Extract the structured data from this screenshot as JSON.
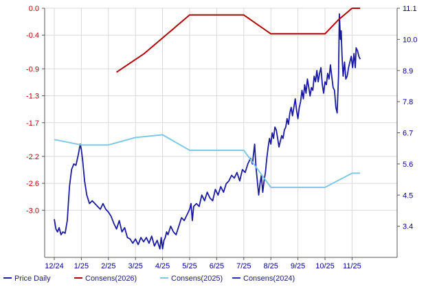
{
  "chart_data": {
    "type": "line",
    "x_ticks": [
      "12/24",
      "1/25",
      "2/25",
      "3/25",
      "4/25",
      "5/25",
      "6/25",
      "7/25",
      "8/25",
      "9/25",
      "10/25",
      "11/25"
    ],
    "y_left": {
      "ticks": [
        0.0,
        -0.4,
        -0.9,
        -1.3,
        -1.7,
        -2.2,
        -2.6,
        -3.0
      ],
      "labels": [
        "0.0",
        "-0.4",
        "-0.9",
        "-1.3",
        "-1.7",
        "-2.2",
        "-2.6",
        "-3.0"
      ],
      "range": [
        -3.7,
        0.0
      ],
      "color": "#b30000"
    },
    "y_right": {
      "ticks": [
        11.1,
        10.0,
        8.9,
        7.8,
        6.7,
        5.6,
        4.5,
        3.4
      ],
      "labels": [
        "11.1",
        "10.0",
        "8.9",
        "7.8",
        "6.7",
        "5.6",
        "4.5",
        "3.4"
      ],
      "range": [
        2.3,
        11.1
      ],
      "color": "#000080"
    },
    "grid": true,
    "legend_position": "bottom",
    "series": [
      {
        "name": "Price Daily",
        "axis": "right",
        "color": "#1a1aa0",
        "points": [
          [
            0.0,
            3.65
          ],
          [
            0.06,
            3.3
          ],
          [
            0.12,
            3.2
          ],
          [
            0.18,
            3.35
          ],
          [
            0.25,
            3.1
          ],
          [
            0.32,
            3.2
          ],
          [
            0.4,
            3.15
          ],
          [
            0.48,
            3.6
          ],
          [
            0.56,
            4.8
          ],
          [
            0.64,
            5.4
          ],
          [
            0.72,
            5.6
          ],
          [
            0.8,
            5.55
          ],
          [
            0.88,
            5.9
          ],
          [
            0.96,
            6.3
          ],
          [
            1.0,
            6.1
          ],
          [
            1.05,
            5.7
          ],
          [
            1.12,
            5.0
          ],
          [
            1.2,
            4.5
          ],
          [
            1.3,
            4.2
          ],
          [
            1.4,
            4.3
          ],
          [
            1.55,
            4.15
          ],
          [
            1.7,
            4.0
          ],
          [
            1.8,
            4.2
          ],
          [
            1.9,
            4.0
          ],
          [
            2.0,
            3.9
          ],
          [
            2.1,
            3.75
          ],
          [
            2.2,
            3.5
          ],
          [
            2.3,
            3.3
          ],
          [
            2.4,
            3.6
          ],
          [
            2.5,
            3.2
          ],
          [
            2.6,
            3.35
          ],
          [
            2.7,
            3.0
          ],
          [
            2.8,
            2.95
          ],
          [
            2.9,
            2.8
          ],
          [
            3.0,
            2.95
          ],
          [
            3.1,
            2.75
          ],
          [
            3.2,
            3.0
          ],
          [
            3.3,
            2.85
          ],
          [
            3.4,
            3.0
          ],
          [
            3.5,
            2.8
          ],
          [
            3.6,
            3.05
          ],
          [
            3.7,
            2.7
          ],
          [
            3.8,
            2.9
          ],
          [
            3.9,
            2.6
          ],
          [
            3.95,
            3.0
          ],
          [
            4.0,
            2.6
          ],
          [
            4.05,
            2.9
          ],
          [
            4.1,
            3.0
          ],
          [
            4.15,
            3.2
          ],
          [
            4.2,
            3.1
          ],
          [
            4.3,
            3.4
          ],
          [
            4.4,
            3.2
          ],
          [
            4.5,
            3.1
          ],
          [
            4.6,
            3.4
          ],
          [
            4.7,
            3.7
          ],
          [
            4.8,
            3.6
          ],
          [
            4.9,
            3.8
          ],
          [
            5.0,
            4.0
          ],
          [
            5.05,
            4.2
          ],
          [
            5.1,
            3.6
          ],
          [
            5.15,
            4.1
          ],
          [
            5.25,
            4.2
          ],
          [
            5.35,
            4.1
          ],
          [
            5.45,
            4.5
          ],
          [
            5.55,
            4.3
          ],
          [
            5.65,
            4.6
          ],
          [
            5.75,
            4.4
          ],
          [
            5.85,
            4.3
          ],
          [
            5.95,
            4.7
          ],
          [
            6.05,
            4.5
          ],
          [
            6.15,
            4.8
          ],
          [
            6.25,
            4.6
          ],
          [
            6.35,
            4.9
          ],
          [
            6.45,
            5.0
          ],
          [
            6.55,
            5.2
          ],
          [
            6.65,
            5.1
          ],
          [
            6.75,
            5.3
          ],
          [
            6.85,
            5.0
          ],
          [
            6.95,
            5.4
          ],
          [
            7.05,
            5.3
          ],
          [
            7.15,
            5.6
          ],
          [
            7.25,
            5.8
          ],
          [
            7.32,
            5.6
          ],
          [
            7.4,
            6.3
          ],
          [
            7.45,
            5.5
          ],
          [
            7.5,
            5.0
          ],
          [
            7.55,
            4.5
          ],
          [
            7.6,
            4.9
          ],
          [
            7.65,
            5.2
          ],
          [
            7.7,
            4.6
          ],
          [
            7.75,
            5.0
          ],
          [
            7.8,
            5.3
          ],
          [
            7.85,
            5.8
          ],
          [
            7.9,
            6.2
          ],
          [
            7.95,
            6.5
          ],
          [
            8.0,
            6.3
          ],
          [
            8.05,
            6.7
          ],
          [
            8.1,
            6.5
          ],
          [
            8.15,
            6.9
          ],
          [
            8.2,
            6.8
          ],
          [
            8.25,
            6.5
          ],
          [
            8.3,
            6.2
          ],
          [
            8.35,
            6.4
          ],
          [
            8.4,
            6.6
          ],
          [
            8.45,
            6.5
          ],
          [
            8.5,
            6.8
          ],
          [
            8.55,
            6.9
          ],
          [
            8.6,
            7.2
          ],
          [
            8.65,
            7.0
          ],
          [
            8.7,
            7.4
          ],
          [
            8.75,
            7.6
          ],
          [
            8.8,
            7.3
          ],
          [
            8.85,
            7.6
          ],
          [
            8.9,
            7.9
          ],
          [
            8.95,
            7.5
          ],
          [
            9.0,
            7.2
          ],
          [
            9.05,
            7.6
          ],
          [
            9.1,
            7.8
          ],
          [
            9.15,
            8.2
          ],
          [
            9.2,
            7.9
          ],
          [
            9.25,
            8.4
          ],
          [
            9.3,
            8.1
          ],
          [
            9.35,
            8.6
          ],
          [
            9.4,
            8.3
          ],
          [
            9.45,
            8.0
          ],
          [
            9.5,
            8.3
          ],
          [
            9.55,
            8.2
          ],
          [
            9.6,
            8.7
          ],
          [
            9.65,
            8.5
          ],
          [
            9.7,
            8.9
          ],
          [
            9.75,
            8.5
          ],
          [
            9.8,
            8.8
          ],
          [
            9.85,
            9.0
          ],
          [
            9.9,
            8.4
          ],
          [
            9.95,
            8.1
          ],
          [
            10.0,
            8.5
          ],
          [
            10.05,
            8.4
          ],
          [
            10.1,
            8.8
          ],
          [
            10.15,
            8.6
          ],
          [
            10.2,
            9.1
          ],
          [
            10.25,
            8.7
          ],
          [
            10.3,
            8.3
          ],
          [
            10.35,
            8.2
          ],
          [
            10.4,
            7.6
          ],
          [
            10.45,
            7.4
          ],
          [
            10.5,
            8.7
          ],
          [
            10.53,
            10.9
          ],
          [
            10.57,
            10.0
          ],
          [
            10.6,
            10.3
          ],
          [
            10.63,
            9.4
          ],
          [
            10.67,
            8.7
          ],
          [
            10.72,
            9.2
          ],
          [
            10.77,
            8.6
          ],
          [
            10.82,
            8.7
          ],
          [
            10.87,
            9.0
          ],
          [
            10.92,
            9.2
          ],
          [
            10.97,
            9.4
          ],
          [
            11.02,
            9.0
          ],
          [
            11.07,
            9.5
          ],
          [
            11.12,
            9.0
          ],
          [
            11.15,
            9.7
          ],
          [
            11.2,
            9.6
          ],
          [
            11.25,
            9.4
          ],
          [
            11.3,
            9.3
          ]
        ]
      },
      {
        "name": "Consens(2026)",
        "axis": "left",
        "color": "#b30000",
        "points": [
          [
            2.3,
            -0.95
          ],
          [
            3.3,
            -0.68
          ],
          [
            5.0,
            -0.1
          ],
          [
            7.0,
            -0.1
          ],
          [
            8.0,
            -0.38
          ],
          [
            10.0,
            -0.38
          ],
          [
            10.5,
            -0.17
          ],
          [
            11.0,
            0.0
          ],
          [
            11.3,
            0.0
          ]
        ]
      },
      {
        "name": "Consens(2025)",
        "axis": "left",
        "color": "#7ec8e3",
        "points": [
          [
            0.0,
            -1.95
          ],
          [
            1.0,
            -2.03
          ],
          [
            2.0,
            -2.03
          ],
          [
            3.0,
            -1.92
          ],
          [
            4.0,
            -1.88
          ],
          [
            5.0,
            -2.11
          ],
          [
            6.0,
            -2.11
          ],
          [
            7.0,
            -2.11
          ],
          [
            8.0,
            -2.66
          ],
          [
            9.0,
            -2.66
          ],
          [
            10.0,
            -2.66
          ],
          [
            11.0,
            -2.45
          ],
          [
            11.3,
            -2.45
          ]
        ]
      },
      {
        "name": "Consens(2024)",
        "axis": "left",
        "color": "#2b2bbf",
        "points": []
      }
    ]
  },
  "legend": [
    {
      "label": "Price Daily",
      "color": "#1a1aa0"
    },
    {
      "label": "Consens(2026)",
      "color": "#b30000"
    },
    {
      "label": "Consens(2025)",
      "color": "#7ec8e3"
    },
    {
      "label": "Consens(2024)",
      "color": "#2b2bbf"
    }
  ]
}
